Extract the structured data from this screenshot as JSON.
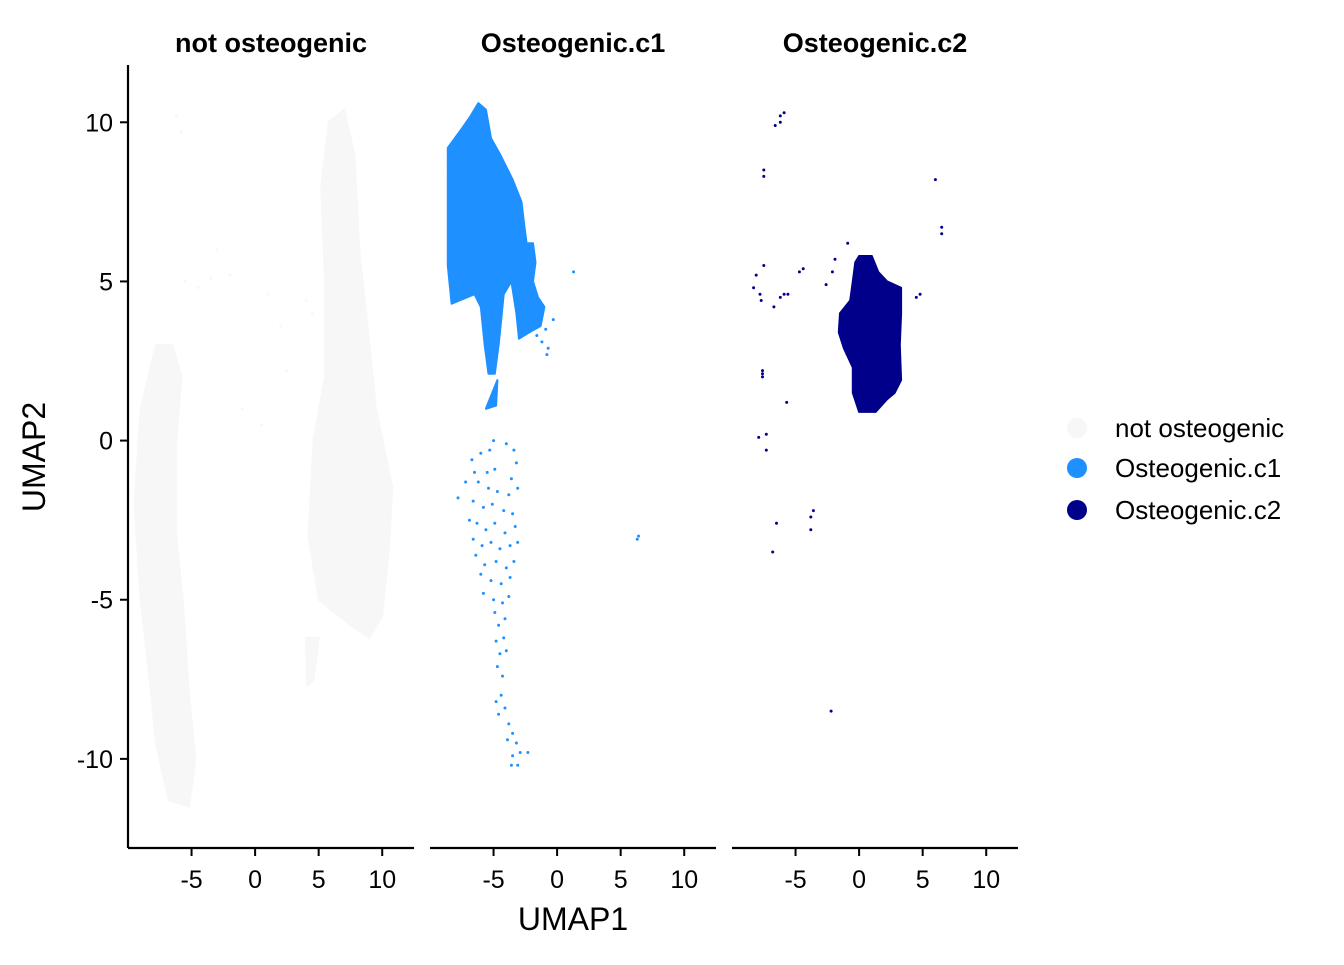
{
  "chart_data": {
    "type": "scatter",
    "xlabel": "UMAP1",
    "ylabel": "UMAP2",
    "xlim": [
      -10,
      12.5
    ],
    "ylim": [
      -12.8,
      11.8
    ],
    "x_ticks": [
      -5,
      0,
      5,
      10
    ],
    "x_tick_labels": [
      "-5",
      "0",
      "5",
      "10"
    ],
    "y_ticks": [
      10,
      5,
      0,
      -5,
      -10
    ],
    "y_tick_labels": [
      "10",
      "5",
      "0",
      "-5",
      "-10"
    ],
    "grid": false,
    "legend": {
      "placement": "right",
      "entries": [
        {
          "label": "not osteogenic",
          "color": "#f7f7f7"
        },
        {
          "label": "Osteogenic.c1",
          "color": "#1e90ff"
        },
        {
          "label": "Osteogenic.c2",
          "color": "#00008b"
        }
      ]
    },
    "facets": [
      {
        "title": "not osteogenic",
        "color": "#f7f7f7",
        "regions": [
          {
            "outline": [
              [
                -7.8,
                3
              ],
              [
                -9,
                1
              ],
              [
                -9.5,
                -2
              ],
              [
                -9,
                -5
              ],
              [
                -8.3,
                -7.5
              ],
              [
                -7.8,
                -9.5
              ],
              [
                -6.8,
                -11.3
              ],
              [
                -5.2,
                -11.5
              ],
              [
                -4.7,
                -10
              ],
              [
                -5.2,
                -8
              ],
              [
                -5.7,
                -5
              ],
              [
                -6.2,
                -3
              ],
              [
                -6.2,
                0
              ],
              [
                -5.8,
                2
              ],
              [
                -6.5,
                3
              ]
            ]
          },
          {
            "outline": [
              [
                5.2,
                8
              ],
              [
                5.8,
                10
              ],
              [
                7,
                10.4
              ],
              [
                7.8,
                9
              ],
              [
                8.2,
                6
              ],
              [
                9,
                3
              ],
              [
                9.5,
                1
              ],
              [
                10.8,
                -1.5
              ],
              [
                10.5,
                -3.5
              ],
              [
                10,
                -5.5
              ],
              [
                9,
                -6.2
              ],
              [
                7.5,
                -5.8
              ],
              [
                5,
                -5
              ],
              [
                4.2,
                -3
              ],
              [
                4.6,
                0
              ],
              [
                5.5,
                2
              ],
              [
                5.5,
                5
              ]
            ]
          },
          {
            "outline": [
              [
                4,
                -6.2
              ],
              [
                5,
                -6.2
              ],
              [
                4.6,
                -7.5
              ],
              [
                4.1,
                -7.7
              ]
            ]
          }
        ],
        "scatter": [
          [
            -6.2,
            10.2
          ],
          [
            -5.8,
            9.7
          ],
          [
            -3,
            6
          ],
          [
            -5.5,
            5
          ],
          [
            -4.5,
            4.8
          ],
          [
            -3.5,
            5.1
          ],
          [
            -2,
            5.2
          ],
          [
            1,
            4.6
          ],
          [
            2,
            3.6
          ],
          [
            -1,
            1
          ],
          [
            0.5,
            0.5
          ],
          [
            2.5,
            2.2
          ],
          [
            4.5,
            4
          ],
          [
            4,
            4.4
          ]
        ]
      },
      {
        "title": "Osteogenic.c1",
        "color": "#1e90ff",
        "regions": [
          {
            "outline": [
              [
                -6.2,
                10.6
              ],
              [
                -5.6,
                10.4
              ],
              [
                -5.2,
                9.5
              ],
              [
                -4.5,
                9
              ],
              [
                -3.5,
                8.2
              ],
              [
                -2.8,
                7.5
              ],
              [
                -2.6,
                6.8
              ],
              [
                -2.4,
                6.2
              ],
              [
                -1.9,
                6.2
              ],
              [
                -1.7,
                5.6
              ],
              [
                -1.9,
                5
              ],
              [
                -1.5,
                4.5
              ],
              [
                -1,
                4.2
              ],
              [
                -1.3,
                3.6
              ],
              [
                -2.2,
                3.4
              ],
              [
                -3,
                3.2
              ],
              [
                -3.2,
                4
              ],
              [
                -3.6,
                5
              ],
              [
                -4.2,
                4.6
              ],
              [
                -4.4,
                3.8
              ],
              [
                -4.6,
                3
              ],
              [
                -4.9,
                2.1
              ],
              [
                -5.4,
                2.1
              ],
              [
                -5.7,
                3
              ],
              [
                -6,
                4.2
              ],
              [
                -6.5,
                4.6
              ],
              [
                -8.3,
                4.3
              ],
              [
                -8.6,
                5.5
              ],
              [
                -8.6,
                9.2
              ],
              [
                -7.5,
                9.8
              ],
              [
                -6.8,
                10.2
              ]
            ]
          },
          {
            "outline": [
              [
                -4.7,
                1.9
              ],
              [
                -5.3,
                1.3
              ],
              [
                -5.6,
                1
              ],
              [
                -4.8,
                1.1
              ]
            ]
          }
        ],
        "scatter": [
          [
            -5.3,
            -0.3
          ],
          [
            -5,
            0
          ],
          [
            -4,
            -0.1
          ],
          [
            -3.4,
            -0.3
          ],
          [
            -3.2,
            -0.7
          ],
          [
            -6,
            -0.4
          ],
          [
            -6.7,
            -0.6
          ],
          [
            -6.5,
            -1
          ],
          [
            -5.5,
            -1
          ],
          [
            -4.9,
            -0.9
          ],
          [
            -3.6,
            -1.2
          ],
          [
            -6.2,
            -1.3
          ],
          [
            -5.4,
            -1.5
          ],
          [
            -4.7,
            -1.6
          ],
          [
            -3.8,
            -1.7
          ],
          [
            -3.1,
            -1.5
          ],
          [
            -6.6,
            -1.9
          ],
          [
            -5.8,
            -2.1
          ],
          [
            -5.1,
            -2
          ],
          [
            -4.2,
            -2.2
          ],
          [
            -3.5,
            -2.3
          ],
          [
            -6.9,
            -2.5
          ],
          [
            -6.3,
            -2.6
          ],
          [
            -5.6,
            -2.8
          ],
          [
            -4.9,
            -2.6
          ],
          [
            -4.1,
            -2.9
          ],
          [
            -3.3,
            -2.7
          ],
          [
            -6.6,
            -3.1
          ],
          [
            -5.9,
            -3.3
          ],
          [
            -5.2,
            -3.2
          ],
          [
            -4.5,
            -3.4
          ],
          [
            -3.7,
            -3.3
          ],
          [
            -3.1,
            -3.2
          ],
          [
            -6.4,
            -3.6
          ],
          [
            -5.7,
            -3.9
          ],
          [
            -4.8,
            -3.8
          ],
          [
            -4,
            -4
          ],
          [
            -3.4,
            -3.8
          ],
          [
            -6,
            -4.2
          ],
          [
            -5.2,
            -4.4
          ],
          [
            -4.4,
            -4.5
          ],
          [
            -3.7,
            -4.3
          ],
          [
            -5.8,
            -4.8
          ],
          [
            -5,
            -5
          ],
          [
            -4.3,
            -5.1
          ],
          [
            -3.8,
            -4.9
          ],
          [
            -4.9,
            -5.4
          ],
          [
            -4.1,
            -5.6
          ],
          [
            -4.6,
            -5.8
          ],
          [
            -4.2,
            -6.2
          ],
          [
            -4.8,
            -6.3
          ],
          [
            -4.5,
            -6.7
          ],
          [
            -4,
            -6.6
          ],
          [
            -4.7,
            -7.1
          ],
          [
            -4.3,
            -7.4
          ],
          [
            -4.4,
            -8
          ],
          [
            -4.8,
            -8.2
          ],
          [
            -4.1,
            -8.4
          ],
          [
            -4.6,
            -8.6
          ],
          [
            -3.8,
            -8.9
          ],
          [
            -3.5,
            -9.2
          ],
          [
            -3.2,
            -9.5
          ],
          [
            -3.5,
            -9.9
          ],
          [
            -2.9,
            -9.8
          ],
          [
            -3.6,
            -10.2
          ],
          [
            -3.1,
            -10.2
          ],
          [
            -2.3,
            -9.8
          ],
          [
            -3.9,
            -9.4
          ],
          [
            -7.8,
            -1.8
          ],
          [
            -7.2,
            -1.3
          ],
          [
            6.3,
            -3.1
          ],
          [
            6.4,
            -3
          ],
          [
            1.3,
            5.3
          ],
          [
            -1.6,
            3.3
          ],
          [
            -0.9,
            3.5
          ],
          [
            -0.7,
            2.9
          ],
          [
            -0.8,
            2.7
          ],
          [
            -1.2,
            3.1
          ],
          [
            -0.3,
            3.8
          ]
        ]
      },
      {
        "title": "Osteogenic.c2",
        "color": "#00008b",
        "regions": [
          {
            "outline": [
              [
                0,
                5.8
              ],
              [
                1,
                5.8
              ],
              [
                1.5,
                5.3
              ],
              [
                2.2,
                5
              ],
              [
                3.3,
                4.8
              ],
              [
                3.3,
                4
              ],
              [
                3.2,
                3
              ],
              [
                3.3,
                1.9
              ],
              [
                2.8,
                1.5
              ],
              [
                2.2,
                1.3
              ],
              [
                1.3,
                0.9
              ],
              [
                0,
                0.9
              ],
              [
                -0.5,
                1.5
              ],
              [
                -0.5,
                2.3
              ],
              [
                -1.2,
                2.9
              ],
              [
                -1.6,
                3.4
              ],
              [
                -1.5,
                4
              ],
              [
                -0.7,
                4.4
              ],
              [
                -0.5,
                5
              ],
              [
                -0.3,
                5.6
              ]
            ]
          }
        ],
        "scatter": [
          [
            -6.6,
            9.9
          ],
          [
            -6.2,
            10
          ],
          [
            -5.9,
            10.3
          ],
          [
            -6.2,
            10.2
          ],
          [
            -7.5,
            8.5
          ],
          [
            -7.5,
            8.3
          ],
          [
            6,
            8.2
          ],
          [
            6.5,
            6.7
          ],
          [
            6.5,
            6.5
          ],
          [
            -0.9,
            6.2
          ],
          [
            -1.9,
            5.7
          ],
          [
            -2.1,
            5.3
          ],
          [
            -2.6,
            4.9
          ],
          [
            -4.7,
            5.3
          ],
          [
            -4.4,
            5.4
          ],
          [
            -7.5,
            5.5
          ],
          [
            -8.1,
            5.2
          ],
          [
            -8.3,
            4.8
          ],
          [
            -7.8,
            4.6
          ],
          [
            -7.7,
            4.4
          ],
          [
            -6.7,
            4.2
          ],
          [
            -6.2,
            4.5
          ],
          [
            -5.9,
            4.6
          ],
          [
            -5.6,
            4.6
          ],
          [
            4.5,
            4.5
          ],
          [
            4.8,
            4.6
          ],
          [
            -7.6,
            2.2
          ],
          [
            -7.6,
            2.1
          ],
          [
            -7.6,
            2
          ],
          [
            -5.7,
            1.2
          ],
          [
            -7.3,
            0.2
          ],
          [
            -7.9,
            0.1
          ],
          [
            -7.3,
            -0.3
          ],
          [
            -3.6,
            -2.2
          ],
          [
            -3.8,
            -2.4
          ],
          [
            -3.8,
            -2.8
          ],
          [
            -6.5,
            -2.6
          ],
          [
            -6.8,
            -3.5
          ],
          [
            -2.2,
            -8.5
          ]
        ]
      }
    ]
  }
}
